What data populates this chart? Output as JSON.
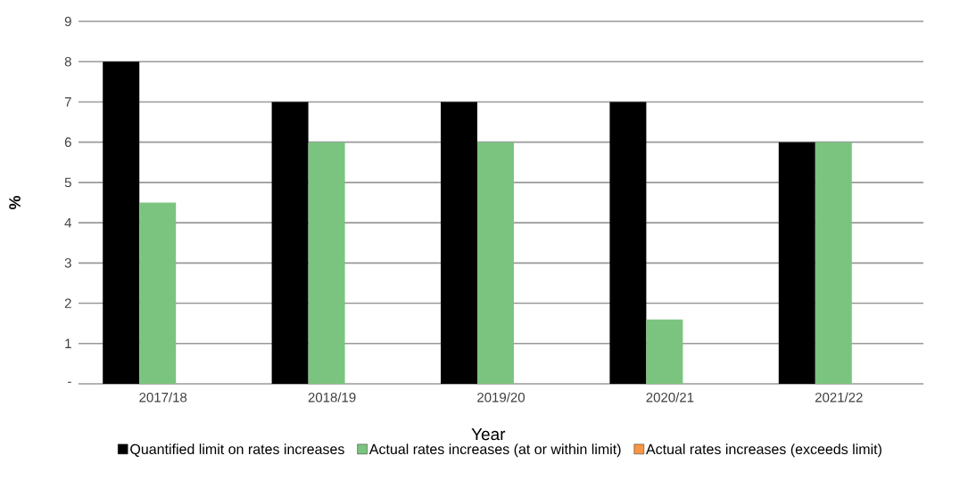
{
  "chart_data": {
    "type": "bar",
    "xlabel": "Year",
    "ylabel": "%",
    "categories": [
      "2017/18",
      "2018/19",
      "2019/20",
      "2020/21",
      "2021/22"
    ],
    "series": [
      {
        "name": "Quantified limit on rates increases",
        "color": "#000000",
        "values": [
          8,
          7,
          7,
          7,
          6
        ]
      },
      {
        "name": "Actual rates increases (at or within limit)",
        "color": "#7bc47f",
        "values": [
          4.5,
          6,
          6,
          1.6,
          6
        ]
      },
      {
        "name": "Actual rates increases (exceeds limit)",
        "color": "#f79646",
        "values": [
          null,
          null,
          null,
          null,
          null
        ]
      }
    ],
    "ylim": [
      0,
      9
    ],
    "yticks": [
      {
        "value": 0,
        "label": "-"
      },
      1,
      2,
      3,
      4,
      5,
      6,
      7,
      8,
      9
    ],
    "grid": "y",
    "legend": "bottom"
  }
}
